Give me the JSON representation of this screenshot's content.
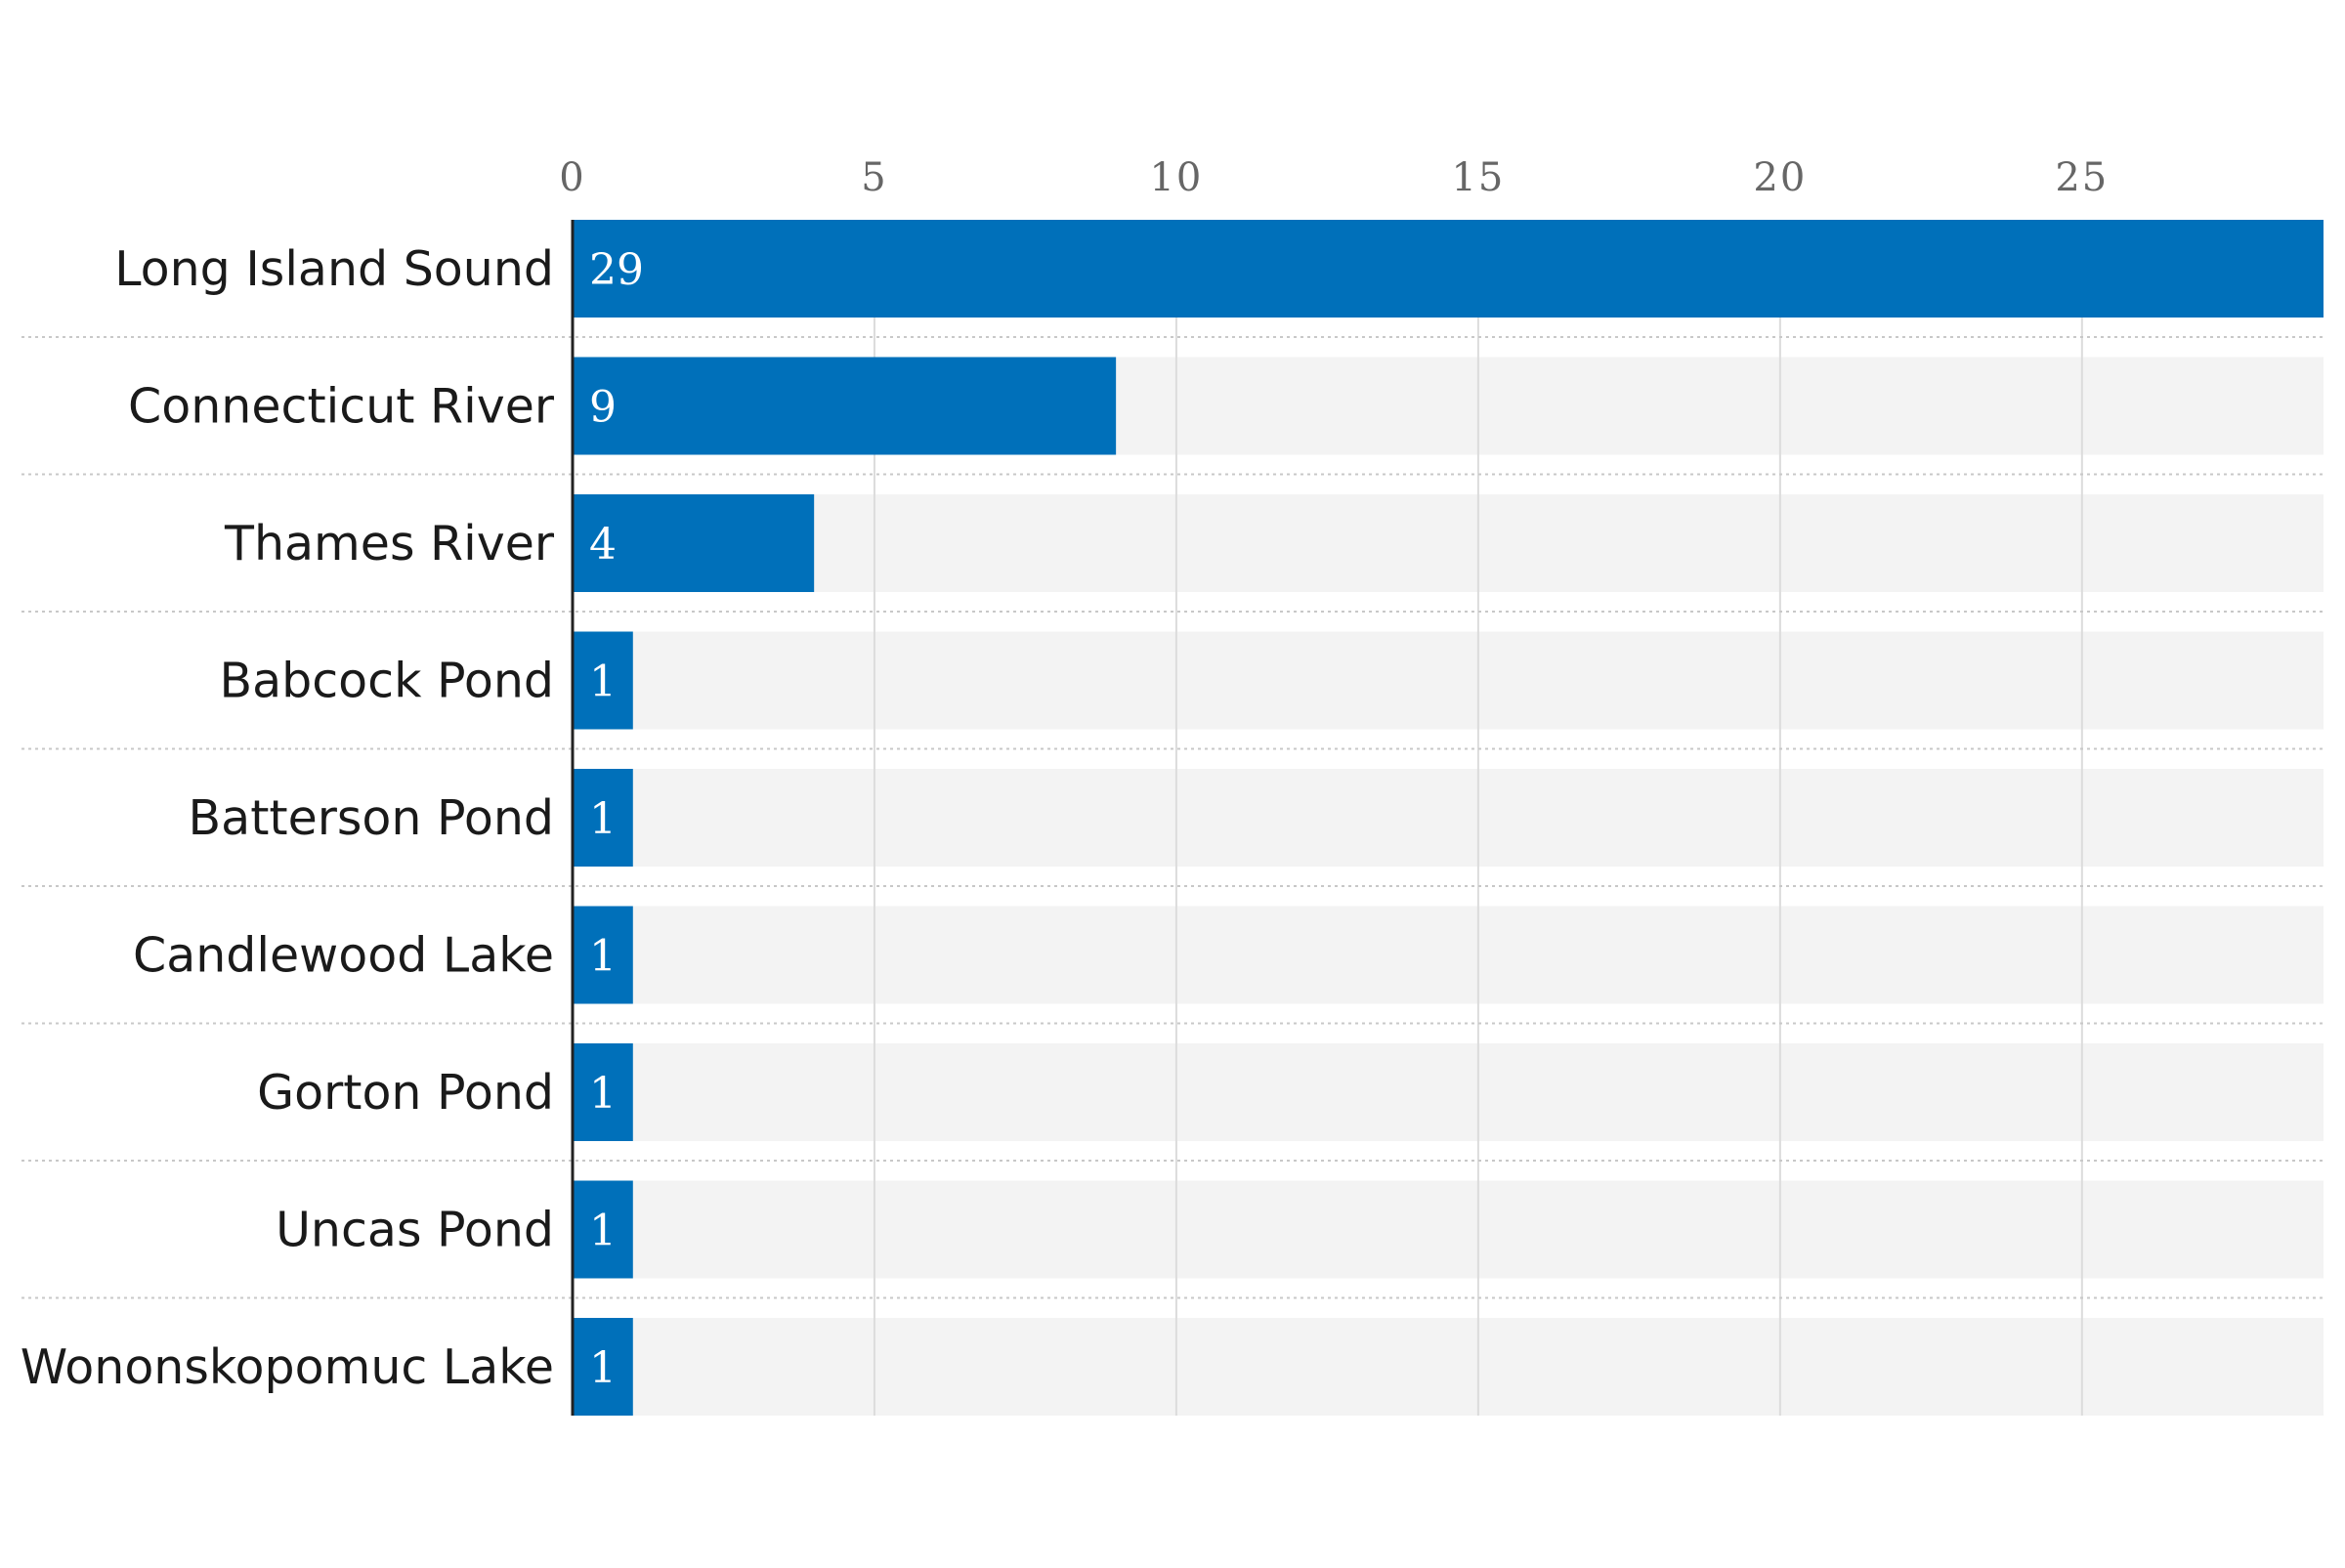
{
  "chart_data": {
    "type": "bar",
    "orientation": "horizontal",
    "categories": [
      "Long Island Sound",
      "Connecticut River",
      "Thames River",
      "Babcock Pond",
      "Batterson Pond",
      "Candlewood Lake",
      "Gorton Pond",
      "Uncas Pond",
      "Wononskopomuc Lake"
    ],
    "values": [
      29,
      9,
      4,
      1,
      1,
      1,
      1,
      1,
      1
    ],
    "data_labels": [
      "29",
      "9",
      "4",
      "1",
      "1",
      "1",
      "1",
      "1",
      "1"
    ],
    "xlim": [
      0,
      29
    ],
    "x_ticks": [
      0,
      5,
      10,
      15,
      20,
      25
    ],
    "x_tick_labels": [
      "0",
      "5",
      "10",
      "15",
      "20",
      "25"
    ],
    "x_axis_position": "top",
    "grid": true,
    "legend": "none",
    "title": "",
    "xlabel": "",
    "ylabel": "",
    "colors": {
      "bar": "#0070BA",
      "track": "#F3F3F3",
      "gridline": "#DCDCDC",
      "separator": "#C8C8C8",
      "baseline": "#222222",
      "category_text": "#1A1A1A",
      "tick_text": "#666666",
      "value_text": "#FFFFFF"
    }
  }
}
